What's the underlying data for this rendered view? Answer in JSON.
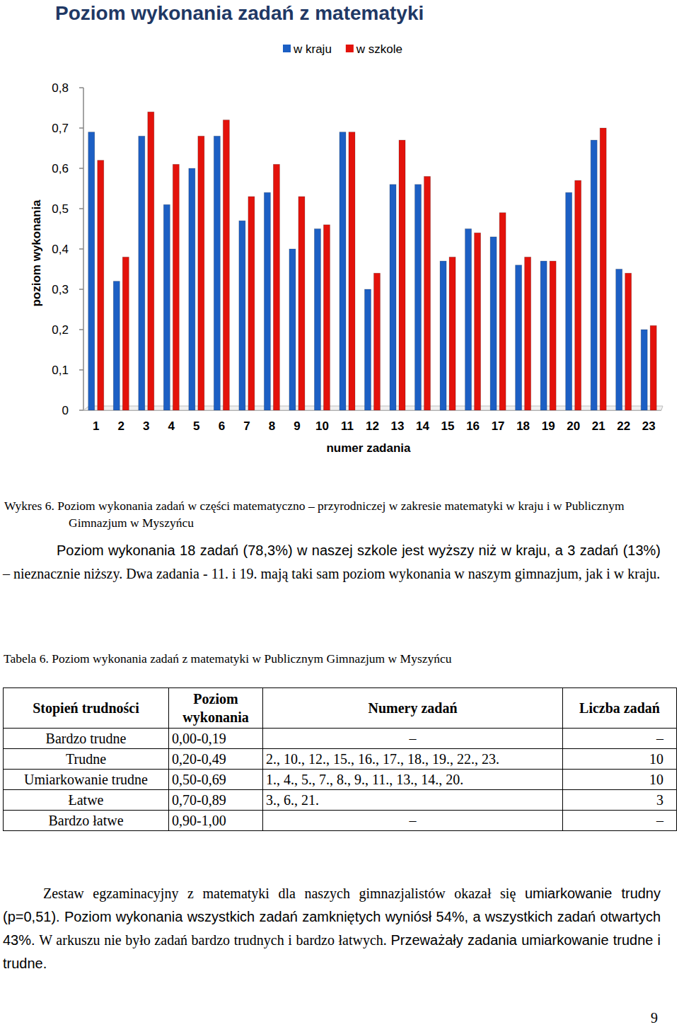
{
  "chart_data": {
    "type": "bar",
    "title": "Poziom wykonania zadań z matematyki",
    "x_label": "numer zadania",
    "y_label": "poziom wykonania",
    "categories": [
      "1",
      "2",
      "3",
      "4",
      "5",
      "6",
      "7",
      "8",
      "9",
      "10",
      "11",
      "12",
      "13",
      "14",
      "15",
      "16",
      "17",
      "18",
      "19",
      "20",
      "21",
      "22",
      "23"
    ],
    "series": [
      {
        "name": "w kraju",
        "color": "#1c5fc4",
        "values": [
          0.69,
          0.32,
          0.68,
          0.51,
          0.6,
          0.68,
          0.47,
          0.54,
          0.4,
          0.45,
          0.69,
          0.3,
          0.56,
          0.56,
          0.37,
          0.45,
          0.43,
          0.36,
          0.37,
          0.54,
          0.67,
          0.35,
          0.2
        ]
      },
      {
        "name": "w szkole",
        "color": "#e3120b",
        "values": [
          0.62,
          0.38,
          0.74,
          0.61,
          0.68,
          0.72,
          0.53,
          0.61,
          0.53,
          0.46,
          0.69,
          0.34,
          0.67,
          0.58,
          0.38,
          0.44,
          0.49,
          0.38,
          0.37,
          0.57,
          0.7,
          0.34,
          0.21
        ]
      }
    ],
    "ylim": [
      0,
      0.8
    ],
    "yticks": [
      0,
      {
        "value": 0.1,
        "label": "0,1"
      },
      {
        "value": 0.2,
        "label": "0,2"
      },
      {
        "value": 0.3,
        "label": "0,3"
      },
      {
        "value": 0.4,
        "label": "0,4"
      },
      {
        "value": 0.5,
        "label": "0,5"
      },
      {
        "value": 0.6,
        "label": "0,6"
      },
      {
        "value": 0.7,
        "label": "0,7"
      },
      {
        "value": 0.8,
        "label": "0,8"
      }
    ],
    "grid": false,
    "legend": "top"
  },
  "figure_caption": "Wykres 6. Poziom wykonania zadań w części matematyczno – przyrodniczej w zakresie matematyki w kraju i w Publicznym Gimnazjum w Myszyńcu",
  "paragraphs": [
    [
      "Poziom wykonania 18 zadań (78,3%) w naszej szkole jest wyższy niż w kraju, a 3 zadań (13%)",
      "– nieznacznie niższy. Dwa zadania - 11. i 19. mają taki sam poziom wykonania w naszym gimnazjum, jak i w kraju."
    ],
    [
      "Zestaw egzaminacyjny z matematyki dla naszych gimnazjalistów okazał się",
      "umiarkowanie trudny (p=0,51). Poziom wykonania wszystkich zadań zamkniętych wyniósł 54%, a wszystkich zadań otwartych 43%.",
      "W arkuszu nie było zadań bardzo trudnych i bardzo łatwych.",
      "Przeważały zadania umiarkowanie trudne i trudne."
    ]
  ],
  "table_caption": "Tabela 6. Poziom wykonania zadań z matematyki w Publicznym Gimnazjum w Myszyńcu",
  "table": {
    "header": [
      "Stopień trudności",
      "Poziom wykonania",
      "Numery zadań",
      "Liczba zadań"
    ],
    "rows": [
      [
        "Bardzo trudne",
        "0,00-0,19",
        "–",
        "–"
      ],
      [
        "Trudne",
        "0,20-0,49",
        "2., 10., 12., 15., 16., 17., 18., 19., 22., 23.",
        "10"
      ],
      [
        "Umiarkowanie trudne",
        "0,50-0,69",
        "1., 4., 5., 7., 8., 9., 11., 13., 14., 20.",
        "10"
      ],
      [
        "Łatwe",
        "0,70-0,89",
        "3., 6., 21.",
        "3"
      ],
      [
        "Bardzo łatwe",
        "0,90-1,00",
        "–",
        "–"
      ]
    ]
  },
  "page_number": "9"
}
